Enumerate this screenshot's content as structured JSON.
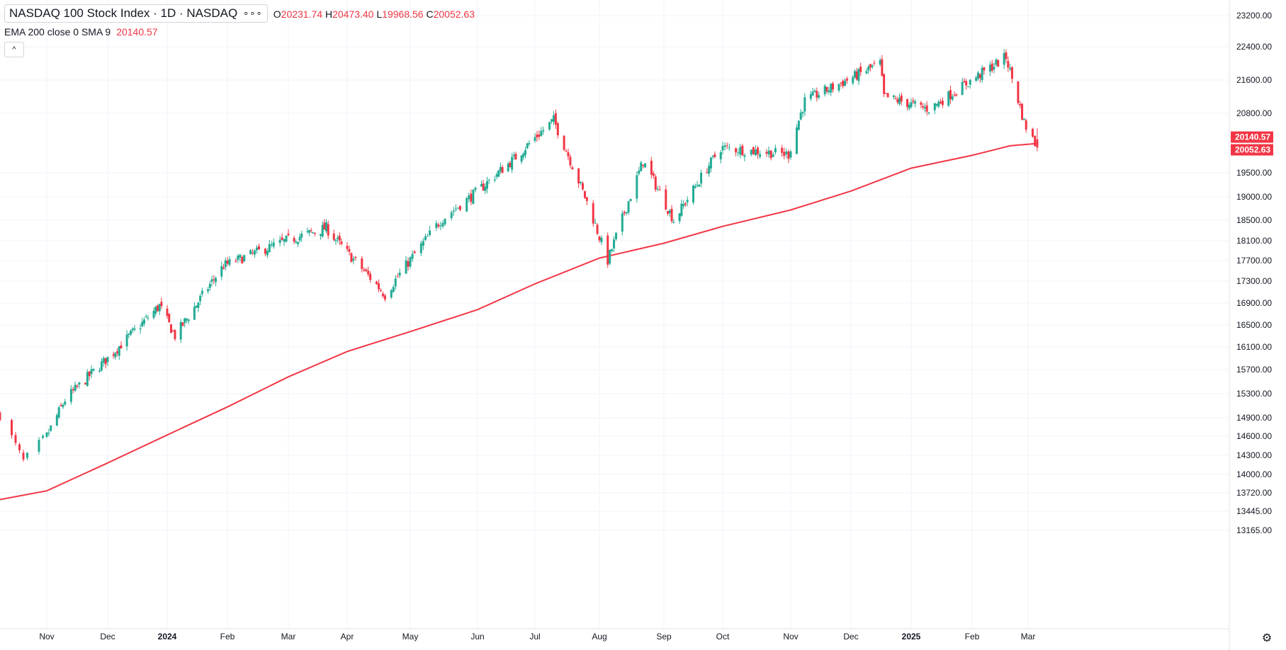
{
  "legend": {
    "title": "NASDAQ 100 Stock Index · 1D · NASDAQ",
    "more": "∘∘∘",
    "o_label": "O",
    "o_value": "20231.74",
    "h_label": "H",
    "h_value": "20473.40",
    "l_label": "L",
    "l_value": "19968.56",
    "c_label": "C",
    "c_value": "20052.63",
    "indicator": "EMA 200 close 0 SMA 9",
    "indicator_value": "20140.57",
    "collapse": "^"
  },
  "axis_settings_icon": "gear-icon",
  "colors": {
    "up": "#22ab94",
    "down": "#f23645",
    "ema": "#f23645",
    "grid": "#f0f3fa",
    "text": "#131722"
  },
  "chart_data": {
    "type": "candlestick",
    "y_ticks": [
      23200,
      22400,
      21600,
      20800,
      19500,
      19000,
      18500,
      18100,
      17700,
      17300,
      16900,
      16500,
      16100,
      15700,
      15300,
      14900,
      14600,
      14300,
      14000,
      13720,
      13445,
      13165
    ],
    "y_tick_labels": [
      "23200.00",
      "22400.00",
      "21600.00",
      "20800.00",
      "19500.00",
      "19000.00",
      "18500.00",
      "18100.00",
      "17700.00",
      "17300.00",
      "16900.00",
      "16500.00",
      "16100.00",
      "15700.00",
      "15300.00",
      "14900.00",
      "14600.00",
      "14300.00",
      "14000.00",
      "13720.00",
      "13445.00",
      "13165.00"
    ],
    "x_labels": [
      {
        "date": "2023-11-01",
        "label": "Nov"
      },
      {
        "date": "2023-12-01",
        "label": "Dec"
      },
      {
        "date": "2024-01-01",
        "label": "2024",
        "bold": true
      },
      {
        "date": "2024-02-01",
        "label": "Feb"
      },
      {
        "date": "2024-03-01",
        "label": "Mar"
      },
      {
        "date": "2024-04-01",
        "label": "Apr"
      },
      {
        "date": "2024-05-01",
        "label": "May"
      },
      {
        "date": "2024-06-01",
        "label": "Jun"
      },
      {
        "date": "2024-07-01",
        "label": "Jul"
      },
      {
        "date": "2024-08-01",
        "label": "Aug"
      },
      {
        "date": "2024-09-01",
        "label": "Sep"
      },
      {
        "date": "2024-10-01",
        "label": "Oct"
      },
      {
        "date": "2024-11-01",
        "label": "Nov"
      },
      {
        "date": "2024-12-01",
        "label": "Dec"
      },
      {
        "date": "2025-01-01",
        "label": "2025",
        "bold": true
      },
      {
        "date": "2025-02-01",
        "label": "Feb"
      },
      {
        "date": "2025-03-01",
        "label": "Mar"
      }
    ],
    "close_path": [
      {
        "date": "2023-10-20",
        "value": 14950
      },
      {
        "date": "2023-10-26",
        "value": 14200
      },
      {
        "date": "2023-11-10",
        "value": 15200
      },
      {
        "date": "2023-12-01",
        "value": 15900
      },
      {
        "date": "2023-12-28",
        "value": 16850
      },
      {
        "date": "2024-01-05",
        "value": 16300
      },
      {
        "date": "2024-01-30",
        "value": 17600
      },
      {
        "date": "2024-02-29",
        "value": 18100
      },
      {
        "date": "2024-03-21",
        "value": 18350
      },
      {
        "date": "2024-04-19",
        "value": 17050
      },
      {
        "date": "2024-05-15",
        "value": 18500
      },
      {
        "date": "2024-06-20",
        "value": 19800
      },
      {
        "date": "2024-07-10",
        "value": 20650
      },
      {
        "date": "2024-07-25",
        "value": 19000
      },
      {
        "date": "2024-08-05",
        "value": 17700
      },
      {
        "date": "2024-08-22",
        "value": 19750
      },
      {
        "date": "2024-09-06",
        "value": 18500
      },
      {
        "date": "2024-09-30",
        "value": 20050
      },
      {
        "date": "2024-10-31",
        "value": 19900
      },
      {
        "date": "2024-11-08",
        "value": 21100
      },
      {
        "date": "2024-12-16",
        "value": 22000
      },
      {
        "date": "2024-12-18",
        "value": 21200
      },
      {
        "date": "2025-01-10",
        "value": 20900
      },
      {
        "date": "2025-02-18",
        "value": 22150
      },
      {
        "date": "2025-02-27",
        "value": 20600
      },
      {
        "date": "2025-03-05",
        "value": 20052.63
      }
    ],
    "ema200": {
      "name": "EMA 200",
      "points": [
        {
          "date": "2023-10-20",
          "value": 13620
        },
        {
          "date": "2023-11-01",
          "value": 13750
        },
        {
          "date": "2023-12-01",
          "value": 14180
        },
        {
          "date": "2024-01-01",
          "value": 14620
        },
        {
          "date": "2024-02-01",
          "value": 15080
        },
        {
          "date": "2024-03-01",
          "value": 15580
        },
        {
          "date": "2024-04-01",
          "value": 16020
        },
        {
          "date": "2024-05-01",
          "value": 16380
        },
        {
          "date": "2024-06-01",
          "value": 16780
        },
        {
          "date": "2024-07-01",
          "value": 17250
        },
        {
          "date": "2024-08-01",
          "value": 17750
        },
        {
          "date": "2024-09-01",
          "value": 18050
        },
        {
          "date": "2024-10-01",
          "value": 18380
        },
        {
          "date": "2024-11-01",
          "value": 18720
        },
        {
          "date": "2024-12-01",
          "value": 19120
        },
        {
          "date": "2025-01-01",
          "value": 19600
        },
        {
          "date": "2025-02-01",
          "value": 19880
        },
        {
          "date": "2025-02-20",
          "value": 20090
        },
        {
          "date": "2025-03-05",
          "value": 20140.57
        }
      ]
    },
    "last_labels": [
      {
        "value": 20140.57,
        "text": "20140.57"
      },
      {
        "value": 20052.63,
        "text": "20052.63"
      }
    ]
  }
}
